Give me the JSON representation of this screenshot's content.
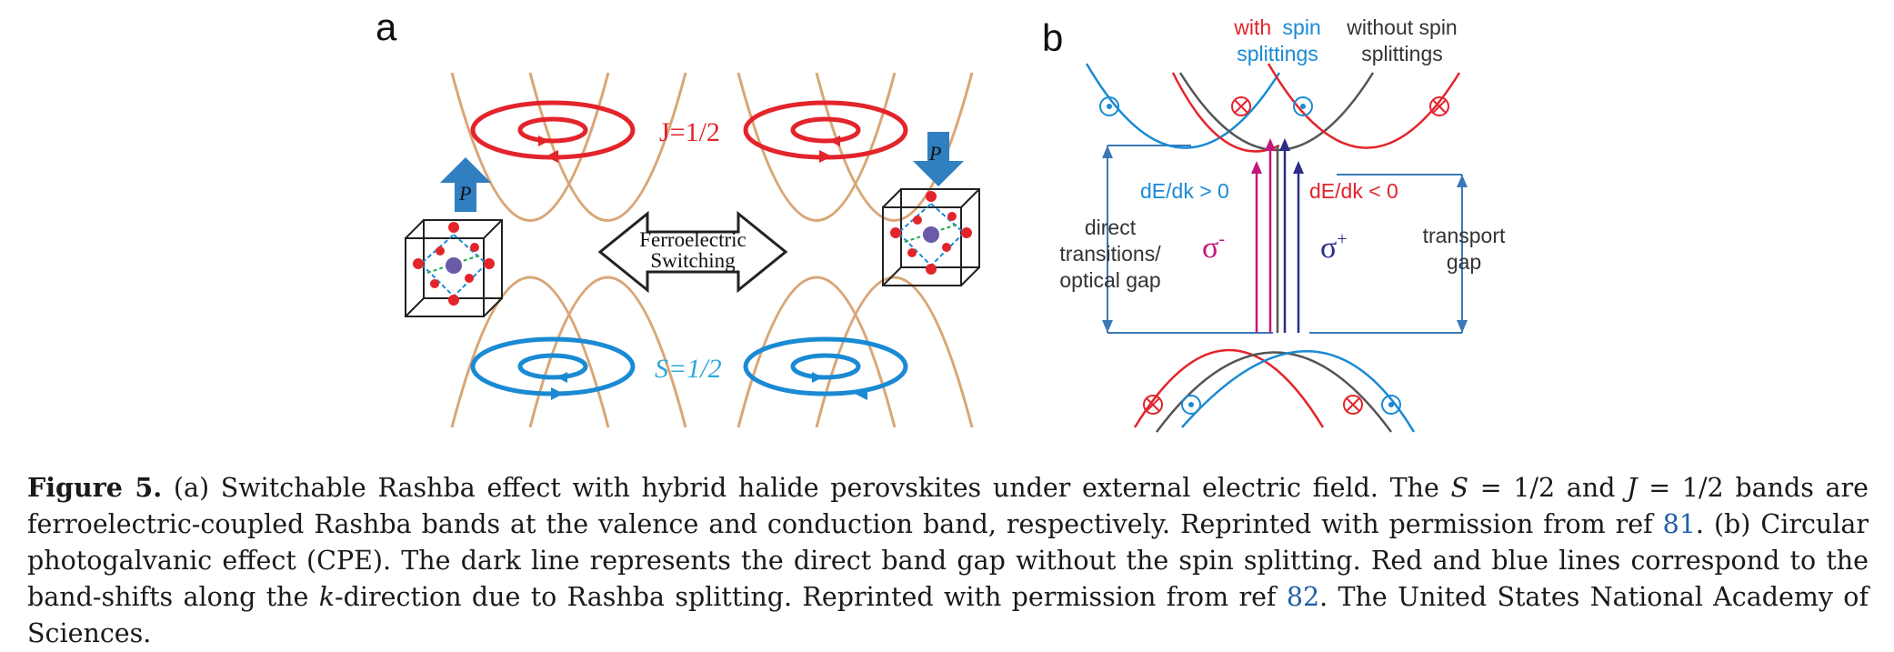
{
  "panel_a": {
    "label": "a",
    "conduction_label": "J=1/2",
    "valence_label": "S=1/2",
    "switch_line1": "Ferroelectric",
    "switch_line2": "Switching",
    "polarization_symbol": "P"
  },
  "panel_b": {
    "label": "b",
    "with_spin_word1": "with",
    "with_spin_word2": "spin",
    "with_spin_word3": "splittings",
    "without_spin_line1": "without spin",
    "without_spin_line2": "splittings",
    "slope_left": "dE/dk > 0",
    "slope_right": "dE/dk < 0",
    "direct_line1": "direct",
    "direct_line2": "transitions/",
    "direct_line3": "optical gap",
    "transport_line1": "transport",
    "transport_line2": "gap",
    "sigma_minus": "σ",
    "sigma_minus_sup": "-",
    "sigma_plus": "σ",
    "sigma_plus_sup": "+"
  },
  "caption": {
    "label": "Figure 5.",
    "t1": " (a) Switchable Rashba effect with hybrid halide perovskites under external electric field. The ",
    "s_var": "S",
    "t2": " = 1/2 and ",
    "j_var": "J",
    "t3": " = 1/2 bands are ferroelectric-coupled Rashba bands at the valence and conduction band, respectively. Reprinted with permission from ref ",
    "ref1": "81",
    "t4": ". (b) Circular photogalvanic effect (CPE). The dark line represents the direct band gap without the spin splitting. Red and blue lines correspond to the band-shifts along the ",
    "k_var": "k",
    "t5": "-direction due to Rashba splitting. Reprinted with permission from ref ",
    "ref2": "82",
    "t6": ". The United States National Academy of Sciences."
  },
  "colors": {
    "red": "#e3242b",
    "blue": "#1a8ad4",
    "tan": "#d9a676",
    "dark": "#555555",
    "magenta": "#c2187b",
    "navy": "#2b2d8a",
    "axis_blue": "#3a79b7",
    "ref_blue": "#1f5fa8"
  }
}
